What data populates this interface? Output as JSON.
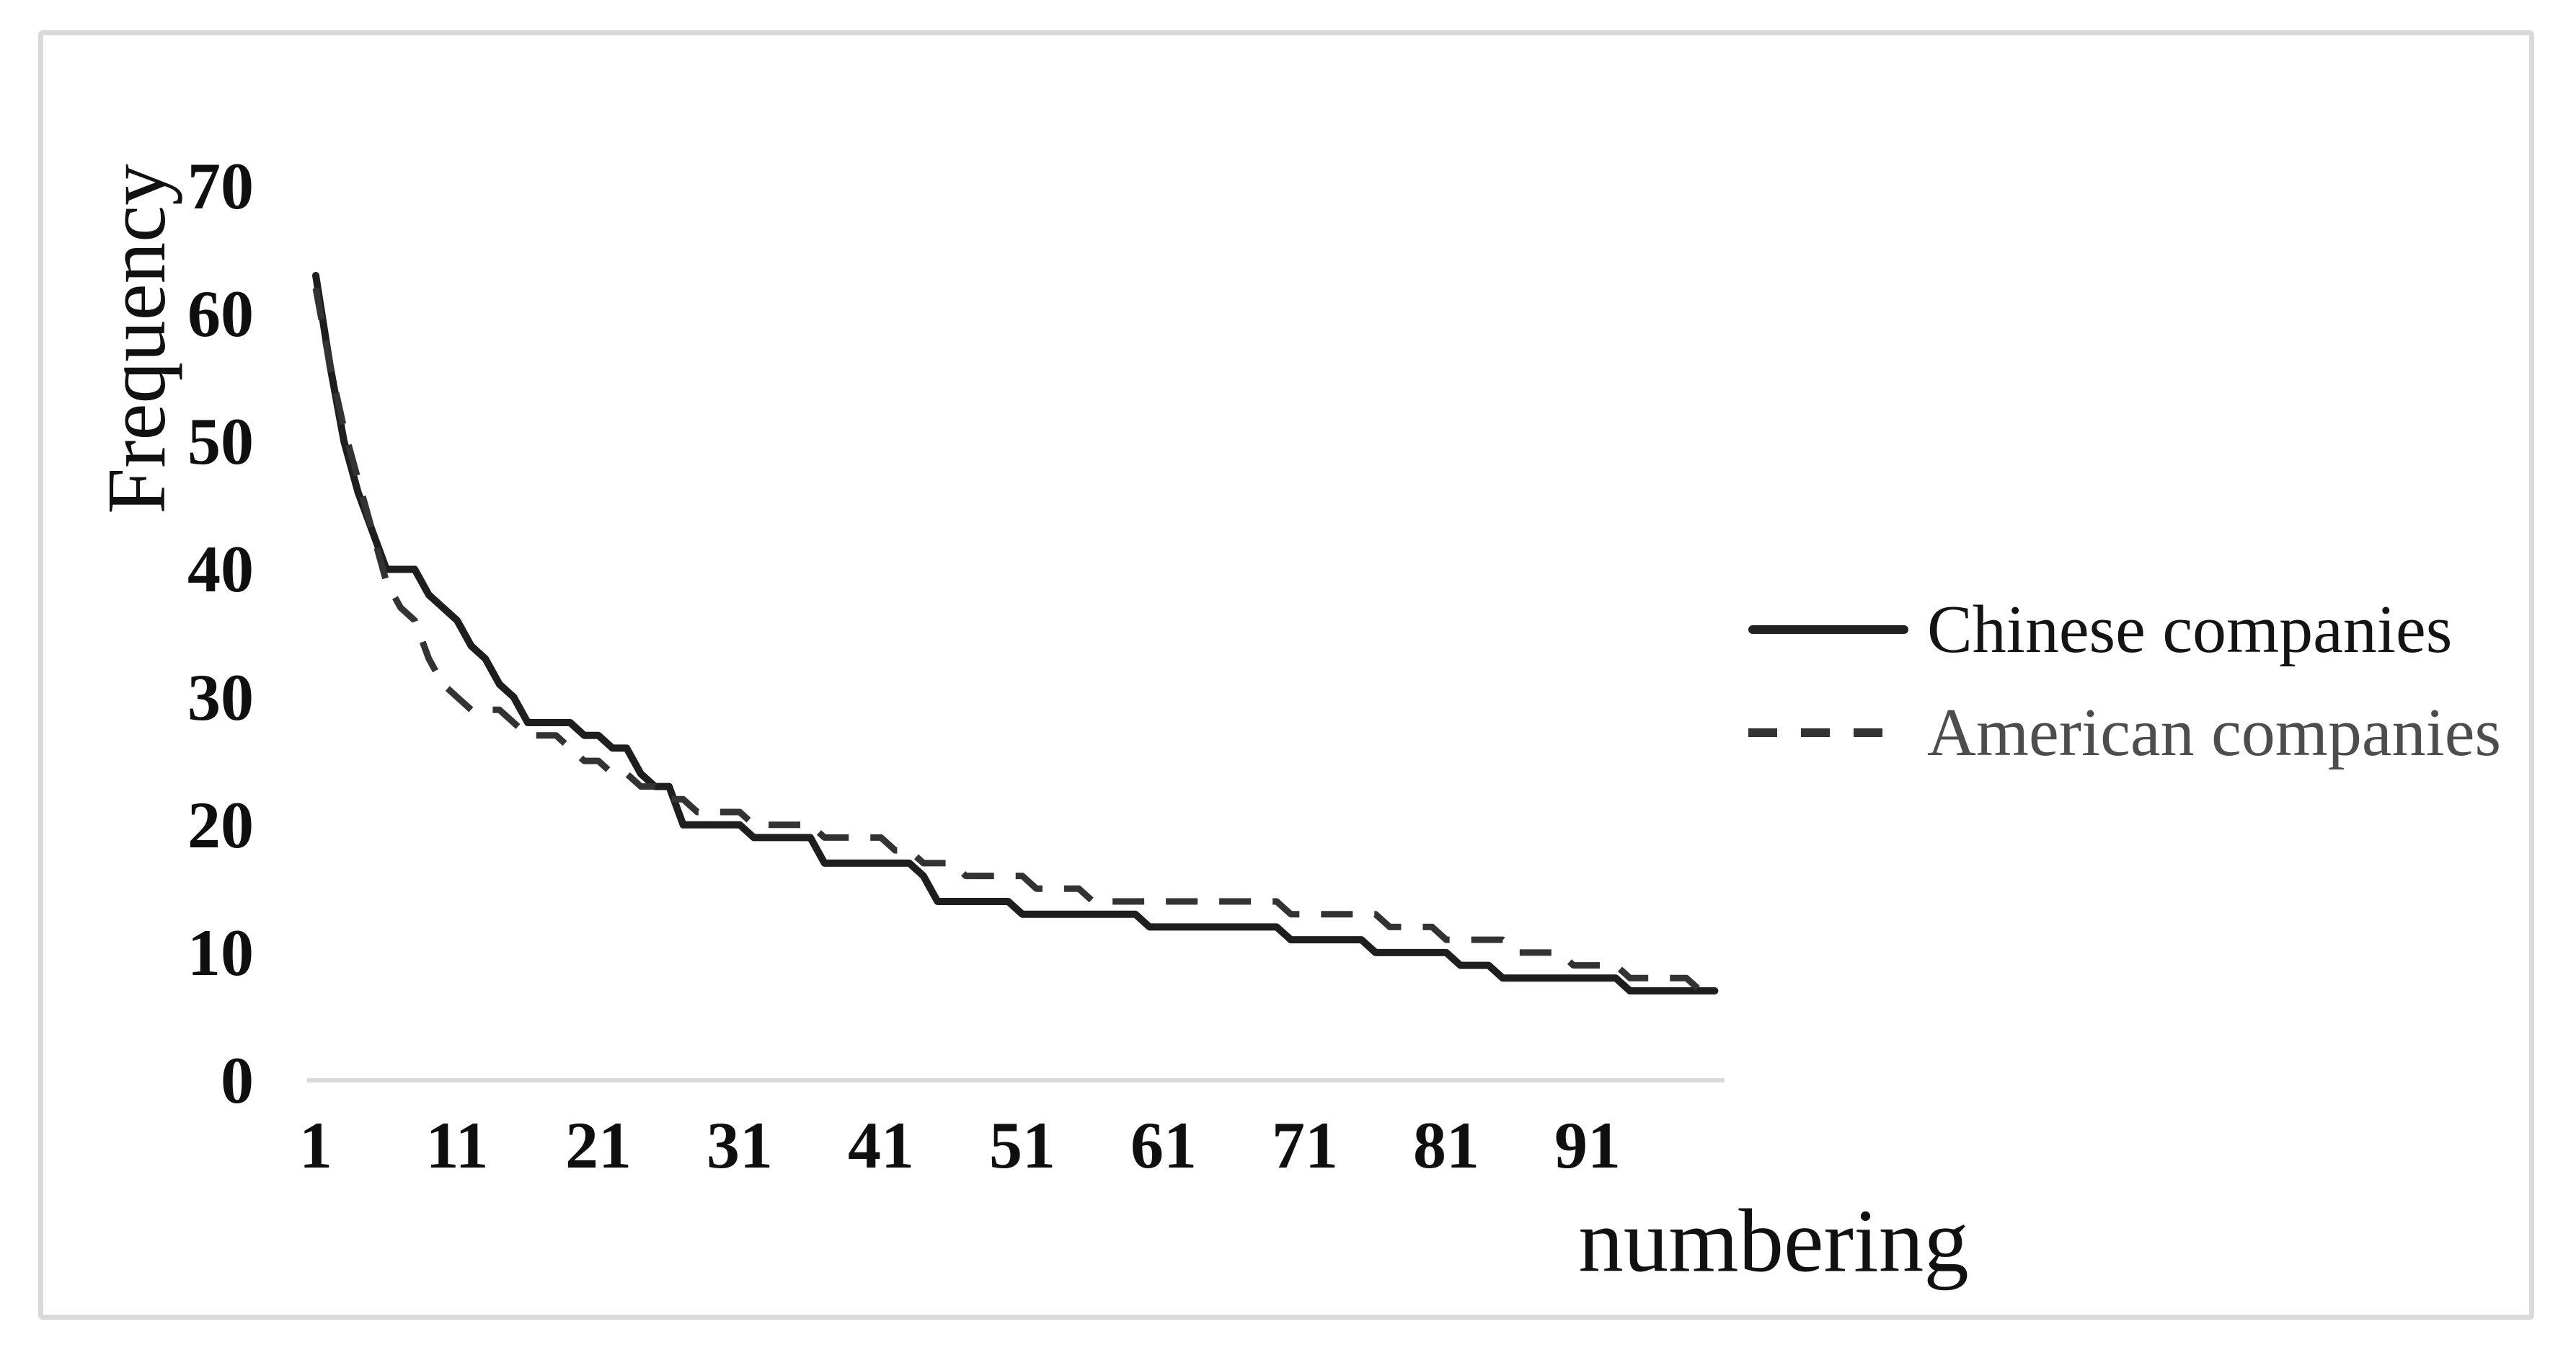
{
  "figure": {
    "background_color": "#ffffff",
    "border_color": "#d9d9d9"
  },
  "chart_data": {
    "type": "line",
    "title": "",
    "xlabel": "numbering",
    "ylabel": "Frequency",
    "x_ticks": [
      1,
      11,
      21,
      31,
      41,
      51,
      61,
      71,
      81,
      91
    ],
    "y_ticks": [
      0,
      10,
      20,
      30,
      40,
      50,
      60,
      70
    ],
    "xlim": [
      1,
      101
    ],
    "ylim": [
      0,
      70
    ],
    "grid": false,
    "legend_position": "center-right",
    "axis_line_color": "#d9d9d9",
    "x": [
      1,
      2,
      3,
      4,
      5,
      6,
      7,
      8,
      9,
      10,
      11,
      12,
      13,
      14,
      15,
      16,
      17,
      18,
      19,
      20,
      21,
      22,
      23,
      24,
      25,
      26,
      27,
      28,
      29,
      30,
      31,
      32,
      33,
      34,
      35,
      36,
      37,
      38,
      39,
      40,
      41,
      42,
      43,
      44,
      45,
      46,
      47,
      48,
      49,
      50,
      51,
      52,
      53,
      54,
      55,
      56,
      57,
      58,
      59,
      60,
      61,
      62,
      63,
      64,
      65,
      66,
      67,
      68,
      69,
      70,
      71,
      72,
      73,
      74,
      75,
      76,
      77,
      78,
      79,
      80,
      81,
      82,
      83,
      84,
      85,
      86,
      87,
      88,
      89,
      90,
      91,
      92,
      93,
      94,
      95,
      96,
      97,
      98,
      99,
      100
    ],
    "series": [
      {
        "name": "Chinese companies",
        "style": "solid",
        "color": "#1e1e1e",
        "values": [
          63,
          56,
          50,
          46,
          43,
          40,
          40,
          40,
          38,
          37,
          36,
          34,
          33,
          31,
          30,
          28,
          28,
          28,
          28,
          27,
          27,
          26,
          26,
          24,
          23,
          23,
          20,
          20,
          20,
          20,
          20,
          19,
          19,
          19,
          19,
          19,
          17,
          17,
          17,
          17,
          17,
          17,
          17,
          16,
          14,
          14,
          14,
          14,
          14,
          14,
          13,
          13,
          13,
          13,
          13,
          13,
          13,
          13,
          13,
          12,
          12,
          12,
          12,
          12,
          12,
          12,
          12,
          12,
          12,
          11,
          11,
          11,
          11,
          11,
          11,
          10,
          10,
          10,
          10,
          10,
          10,
          9,
          9,
          9,
          8,
          8,
          8,
          8,
          8,
          8,
          8,
          8,
          8,
          7,
          7,
          7,
          7,
          7,
          7,
          7
        ]
      },
      {
        "name": "American companies",
        "style": "dashed",
        "color": "#333333",
        "values": [
          62,
          56,
          51,
          47,
          43,
          39,
          37,
          36,
          33,
          31,
          30,
          29,
          29,
          29,
          28,
          27,
          27,
          27,
          26,
          25,
          25,
          24,
          24,
          23,
          23,
          22,
          22,
          21,
          21,
          21,
          21,
          20,
          20,
          20,
          20,
          20,
          19,
          19,
          19,
          19,
          19,
          18,
          18,
          17,
          17,
          17,
          16,
          16,
          16,
          16,
          16,
          15,
          15,
          15,
          15,
          14,
          14,
          14,
          14,
          14,
          14,
          14,
          14,
          14,
          14,
          14,
          14,
          14,
          14,
          13,
          13,
          13,
          13,
          13,
          13,
          13,
          12,
          12,
          12,
          12,
          11,
          11,
          11,
          11,
          11,
          10,
          10,
          10,
          10,
          9,
          9,
          9,
          9,
          8,
          8,
          8,
          8,
          8,
          7,
          7
        ]
      }
    ]
  },
  "legend": {
    "items": [
      {
        "label": "Chinese companies",
        "line_style": "solid",
        "text_color": "#141414"
      },
      {
        "label": "American companies",
        "line_style": "dashed",
        "text_color": "#4d4d4d"
      }
    ]
  }
}
